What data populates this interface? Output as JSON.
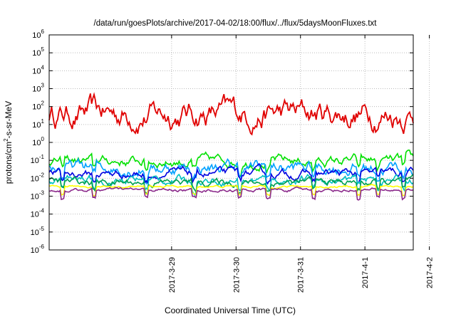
{
  "chart_data": {
    "type": "line",
    "title": "/data/run/goesPlots/archive/2017-04-02/18:00/flux/../flux/5daysMoonFluxes.txt",
    "xlabel": "Coordinated Universal Time (UTC)",
    "ylabel": {
      "base": "protons/cm",
      "sup": "2",
      "rest": "-s-sr-MeV"
    },
    "yscale": "log",
    "ylim": [
      1e-06,
      1000000.0
    ],
    "y_ticks": [
      {
        "base": "10",
        "exp": "-6",
        "value": -6
      },
      {
        "base": "10",
        "exp": "-5",
        "value": -5
      },
      {
        "base": "10",
        "exp": "-4",
        "value": -4
      },
      {
        "base": "10",
        "exp": "-3",
        "value": -3
      },
      {
        "base": "10",
        "exp": "-2",
        "value": -2
      },
      {
        "base": "10",
        "exp": "-1",
        "value": -1
      },
      {
        "base": "10",
        "exp": "0",
        "value": 0
      },
      {
        "base": "10",
        "exp": "1",
        "value": 1
      },
      {
        "base": "10",
        "exp": "2",
        "value": 2
      },
      {
        "base": "10",
        "exp": "3",
        "value": 3
      },
      {
        "base": "10",
        "exp": "4",
        "value": 4
      },
      {
        "base": "10",
        "exp": "5",
        "value": 5
      },
      {
        "base": "10",
        "exp": "6",
        "value": 6
      }
    ],
    "xlim_days": [
      -1.9,
      3.75
    ],
    "x_ticks": [
      {
        "label": "2017-3-29",
        "day": 0
      },
      {
        "label": "2017-3-30",
        "day": 1
      },
      {
        "label": "2017-3-31",
        "day": 2
      },
      {
        "label": "2017-4-1",
        "day": 3
      },
      {
        "label": "2017-4-2",
        "day": 4
      }
    ],
    "grid": true,
    "series": [
      {
        "color": "#e00000",
        "base": 40,
        "noise": 0.9
      },
      {
        "color": "#00e000",
        "base": 0.09,
        "noise": 0.35
      },
      {
        "color": "#00a0ff",
        "base": 0.04,
        "noise": 0.45
      },
      {
        "color": "#0000e0",
        "base": 0.018,
        "noise": 0.3
      },
      {
        "color": "#00c0c0",
        "base": 0.008,
        "noise": 0.3
      },
      {
        "color": "#00a050",
        "base": 0.006,
        "noise": 0.25
      },
      {
        "color": "#ffff00",
        "base": 0.0035,
        "noise": 0.08
      },
      {
        "color": "#8b2a8b",
        "base": 0.0022,
        "noise": 0.12
      }
    ]
  }
}
